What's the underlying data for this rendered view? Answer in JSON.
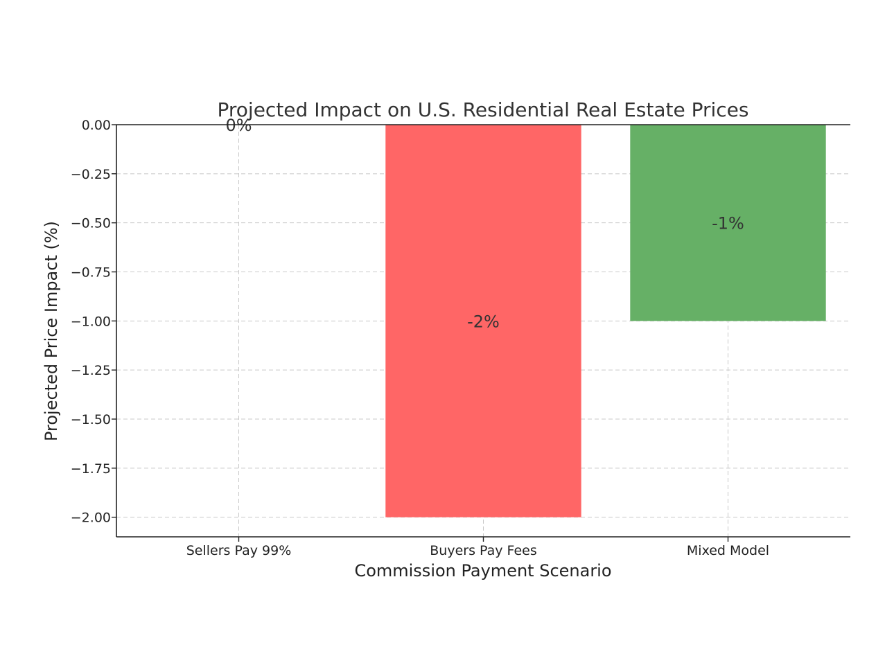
{
  "chart_data": {
    "type": "bar",
    "title": "Projected Impact on U.S. Residential Real Estate Prices",
    "xlabel": "Commission Payment Scenario",
    "ylabel": "Projected Price Impact (%)",
    "categories": [
      "Sellers Pay 99%",
      "Buyers Pay Fees",
      "Mixed Model"
    ],
    "values": [
      0,
      -2,
      -1
    ],
    "data_labels": [
      "0%",
      "-2%",
      "-1%"
    ],
    "colors": [
      "#6699ff",
      "#ff6666",
      "#66b066"
    ],
    "ylim": [
      -2.1,
      0.0
    ],
    "yticks": [
      0.0,
      -0.25,
      -0.5,
      -0.75,
      -1.0,
      -1.25,
      -1.5,
      -1.75,
      -2.0
    ],
    "ytick_labels": [
      "0.00",
      "−0.25",
      "−0.50",
      "−0.75",
      "−1.00",
      "−1.25",
      "−1.50",
      "−1.75",
      "−2.00"
    ],
    "grid": true
  }
}
